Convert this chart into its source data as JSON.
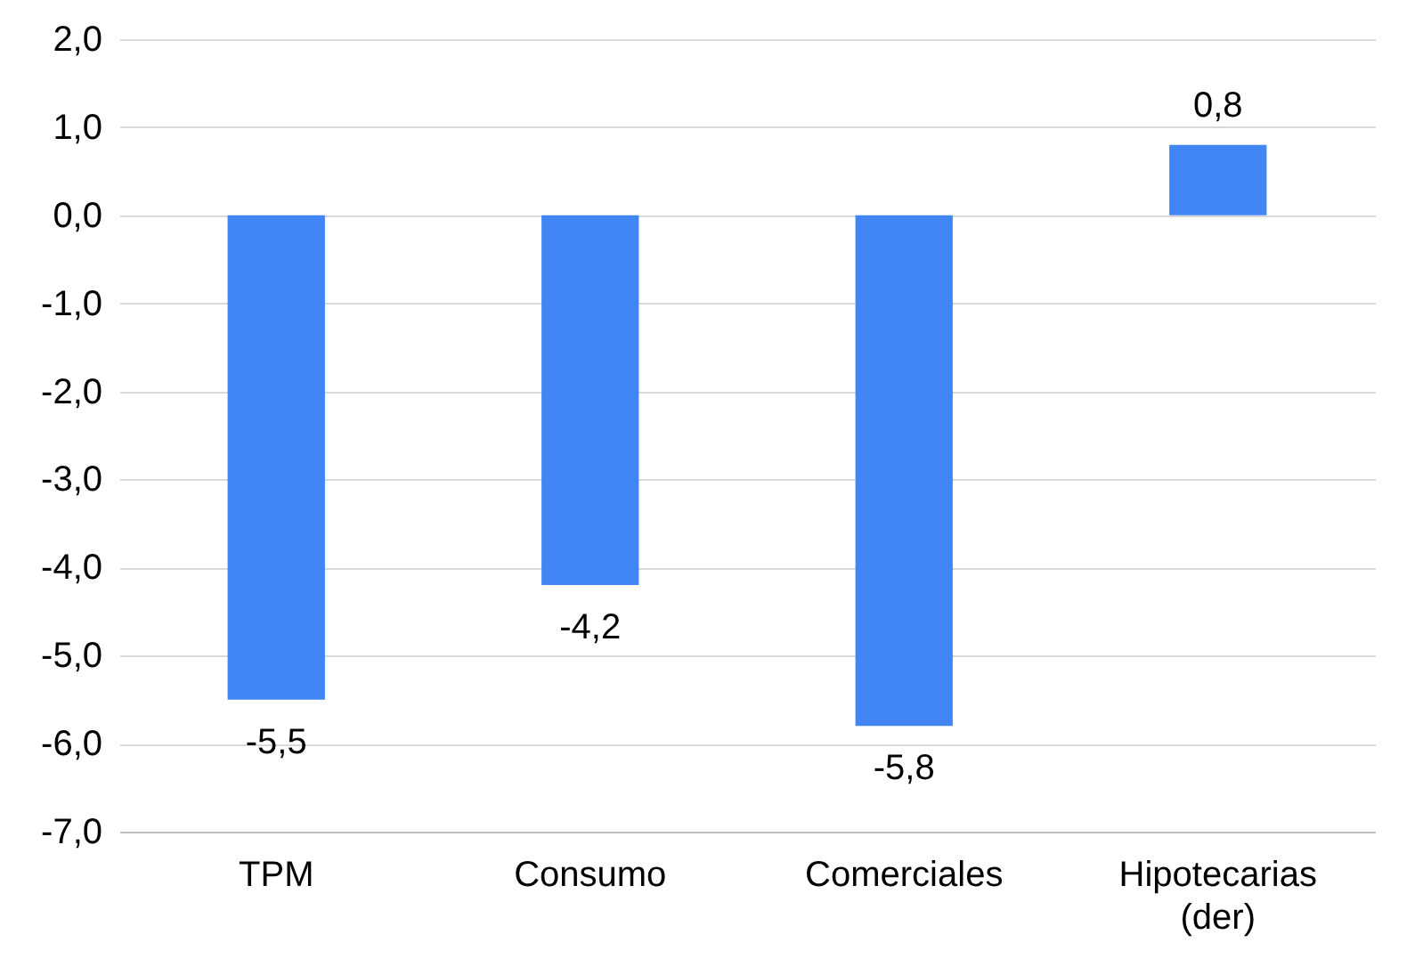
{
  "chart_data": {
    "type": "bar",
    "categories": [
      "TPM",
      "Consumo",
      "Comerciales",
      "Hipotecarias (der)"
    ],
    "values": [
      -5.5,
      -4.2,
      -5.8,
      0.8
    ],
    "color": "#4285f4",
    "value_labels": [
      "-5,5",
      "-4,2",
      "-5,8",
      "0,8"
    ],
    "ylim": [
      -7,
      2
    ],
    "yticks": [
      {
        "value": -7,
        "label": "-7,0"
      },
      {
        "value": -6,
        "label": "-6,0"
      },
      {
        "value": -5,
        "label": "-5,0"
      },
      {
        "value": -4,
        "label": "-4,0"
      },
      {
        "value": -3,
        "label": "-3,0"
      },
      {
        "value": -2,
        "label": "-2,0"
      },
      {
        "value": -1,
        "label": "-1,0"
      },
      {
        "value": 0,
        "label": "0,0"
      },
      {
        "value": 1,
        "label": "1,0"
      },
      {
        "value": 2,
        "label": "2,0"
      }
    ],
    "grid": "y"
  }
}
